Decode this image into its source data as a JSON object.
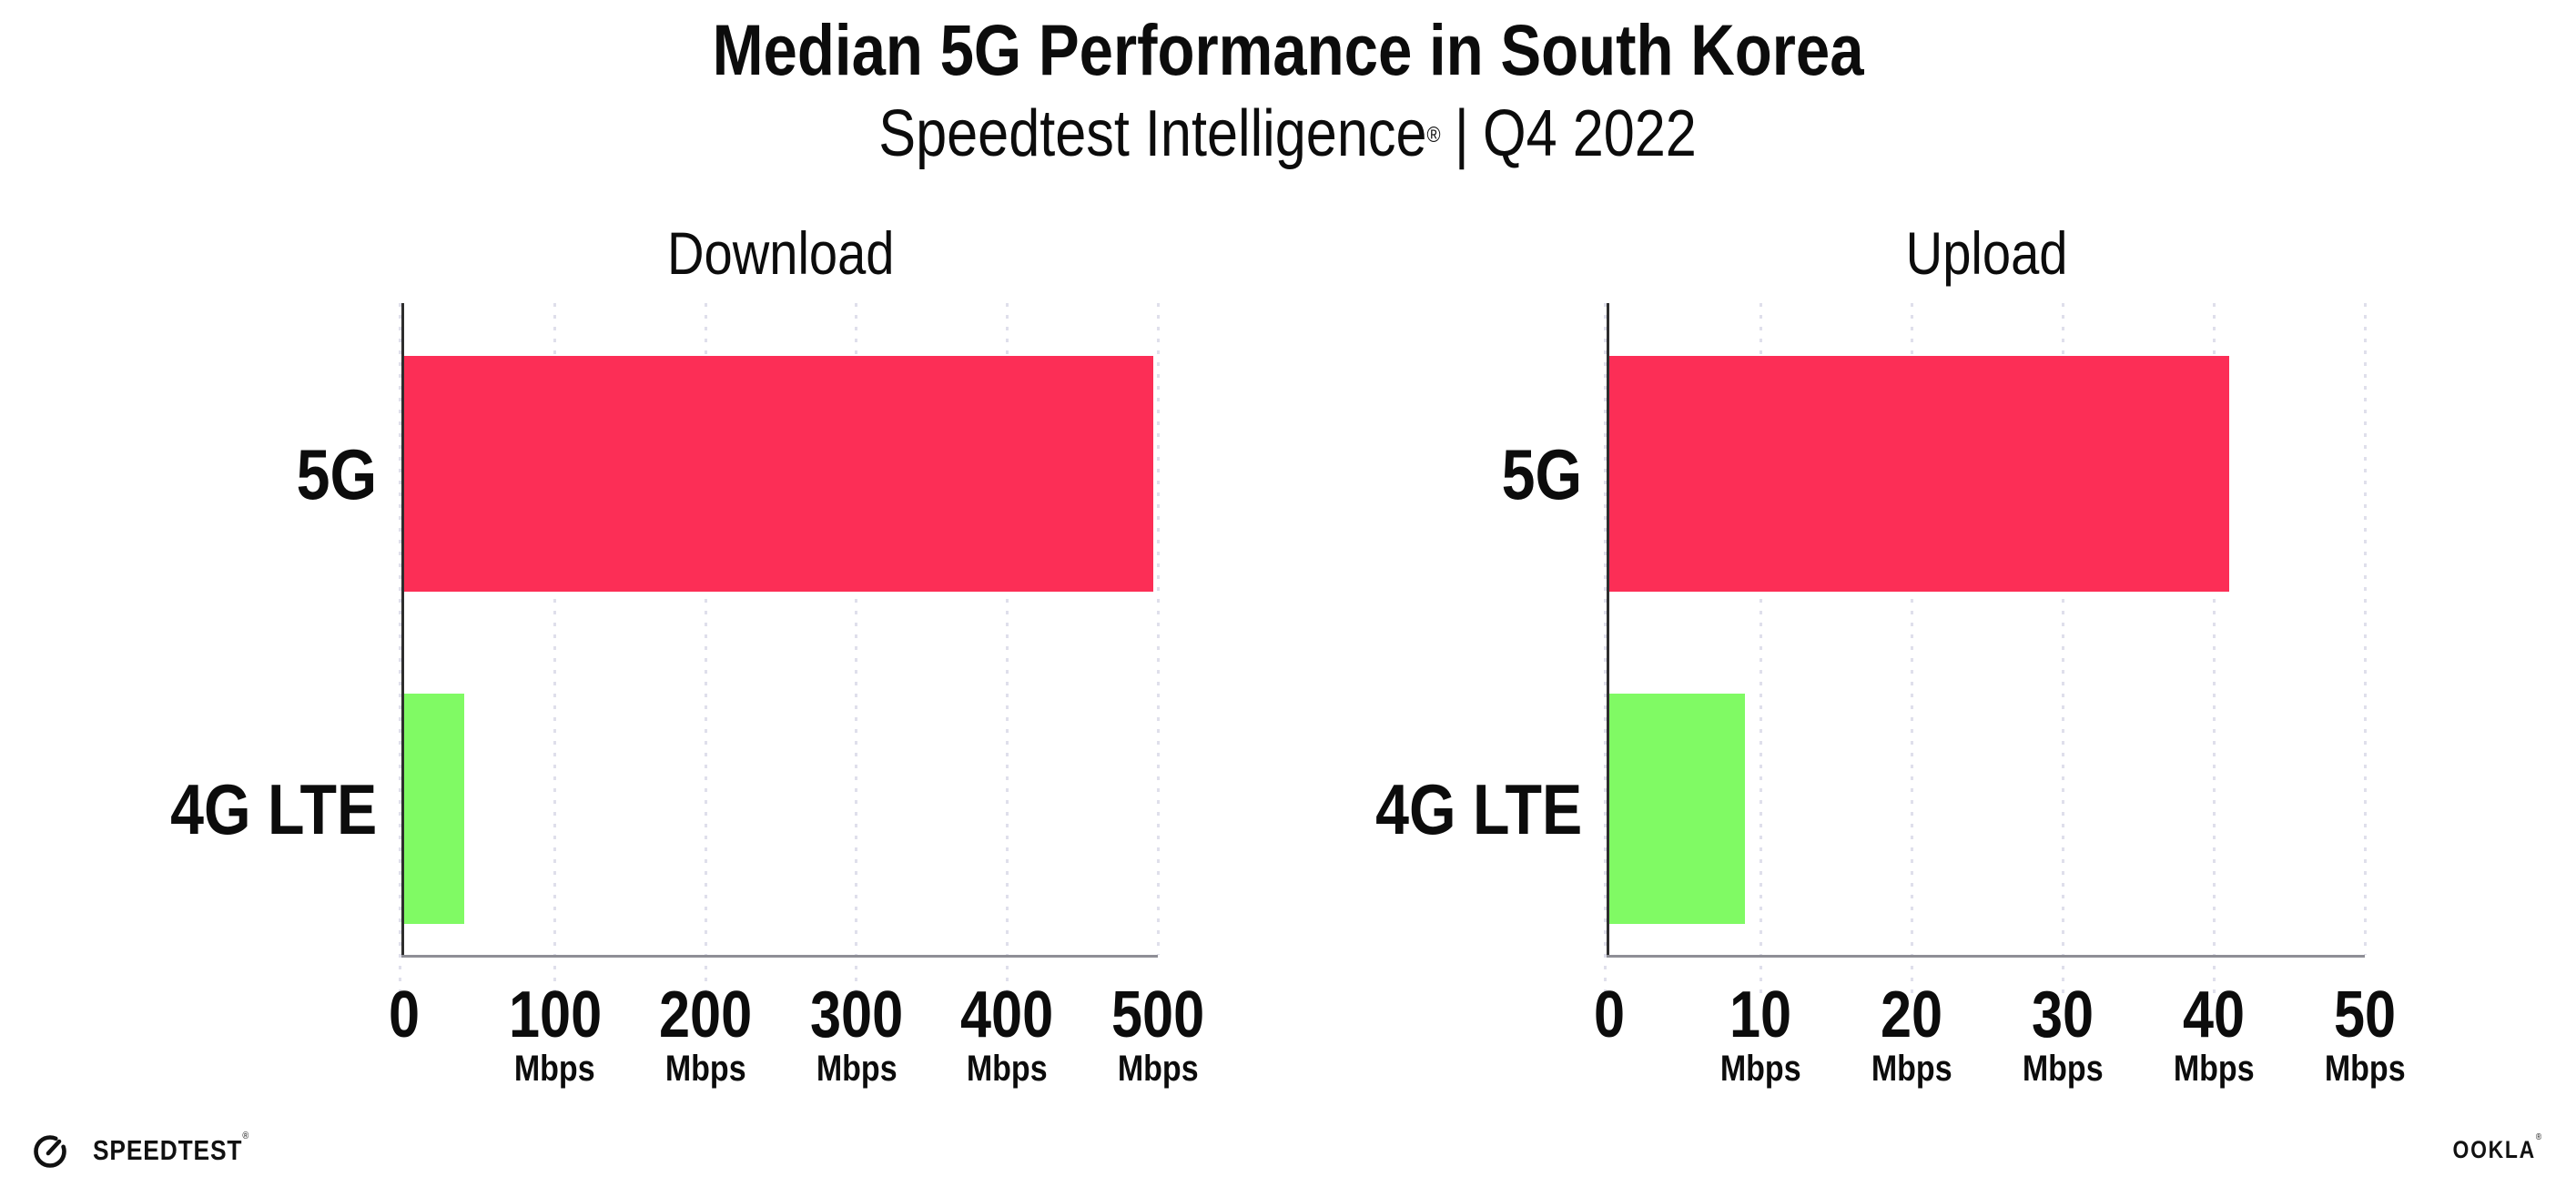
{
  "header": {
    "title": "Median 5G Performance in South Korea",
    "subtitle": {
      "brand": "Speedtest Intelligence",
      "registered_mark": "®",
      "separator": "|",
      "period": "Q4 2022"
    }
  },
  "chart_data": [
    {
      "type": "bar",
      "orientation": "horizontal",
      "title": "Download",
      "categories": [
        "5G",
        "4G LTE"
      ],
      "values": [
        497,
        40
      ],
      "unit": "Mbps",
      "xlim": [
        0,
        500
      ],
      "tick_step": 100,
      "tick_labels": [
        "0",
        "100",
        "200",
        "300",
        "400",
        "500"
      ],
      "grid": "dotted-vertical",
      "legend": "none",
      "bar_colors": [
        "#fc2e56",
        "#80fa64"
      ]
    },
    {
      "type": "bar",
      "orientation": "horizontal",
      "title": "Upload",
      "categories": [
        "5G",
        "4G LTE"
      ],
      "values": [
        41,
        9
      ],
      "unit": "Mbps",
      "xlim": [
        0,
        50
      ],
      "tick_step": 10,
      "tick_labels": [
        "0",
        "10",
        "20",
        "30",
        "40",
        "50"
      ],
      "grid": "dotted-vertical",
      "legend": "none",
      "bar_colors": [
        "#fc2e56",
        "#80fa64"
      ]
    }
  ],
  "colors": {
    "bar_5g": "#fc2e56",
    "bar_4g_lte": "#80fa64",
    "gridline": "#dfdfeb",
    "x_axis_line": "#8f8f96",
    "y_axis_line": "#2e2e2e",
    "text": "#0c0c0c",
    "background": "#ffffff"
  },
  "footer": {
    "speedtest_wordmark": "SPEEDTEST",
    "speedtest_registered": "®",
    "ookla_wordmark": "OOKLA",
    "ookla_registered": "®"
  }
}
